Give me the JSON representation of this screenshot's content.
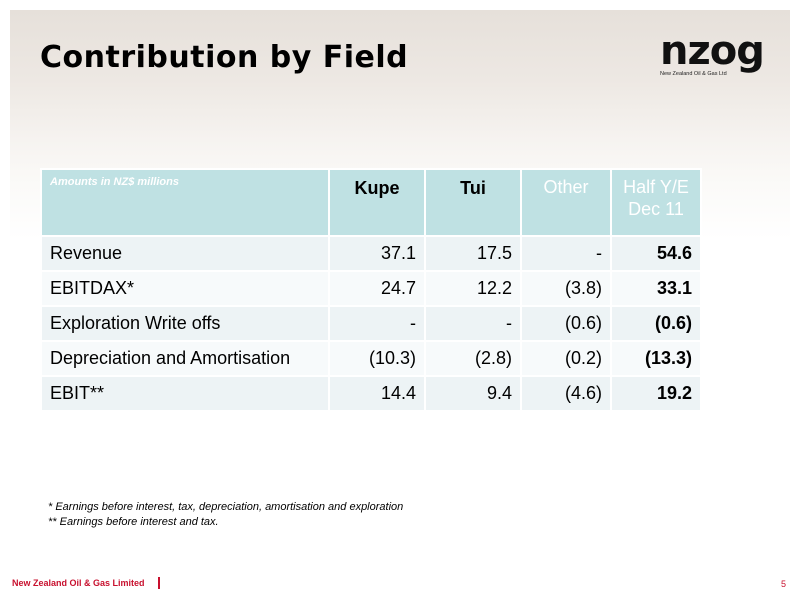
{
  "slide": {
    "title": "Contribution by Field",
    "logo": {
      "mark": "nzog",
      "tagline": "New Zealand Oil & Gas Ltd"
    }
  },
  "table": {
    "caption": "Amounts  in NZ$ millions",
    "columns": [
      "Kupe",
      "Tui",
      "Other"
    ],
    "total_column": [
      "Half Y/E",
      "Dec 11"
    ],
    "rows": [
      {
        "label": "Revenue",
        "kupe": "37.1",
        "tui": "17.5",
        "other": "-",
        "total": "54.6"
      },
      {
        "label": "EBITDAX*",
        "kupe": "24.7",
        "tui": "12.2",
        "other": "(3.8)",
        "total": "33.1"
      },
      {
        "label": "Exploration Write offs",
        "kupe": "-",
        "tui": "-",
        "other": "(0.6)",
        "total": "(0.6)"
      },
      {
        "label": "Depreciation and Amortisation",
        "kupe": "(10.3)",
        "tui": "(2.8)",
        "other": "(0.2)",
        "total": "(13.3)"
      },
      {
        "label": "EBIT**",
        "kupe": "14.4",
        "tui": "9.4",
        "other": "(4.6)",
        "total": "19.2"
      }
    ]
  },
  "footnotes": [
    "* Earnings before interest, tax, depreciation, amortisation and exploration",
    "** Earnings before interest and tax."
  ],
  "footer": {
    "company": "New Zealand Oil & Gas Limited",
    "page": "5"
  },
  "colors": {
    "header_fill": "#bfe1e3",
    "row_fill": "#edf3f5",
    "accent": "#c8102e"
  }
}
